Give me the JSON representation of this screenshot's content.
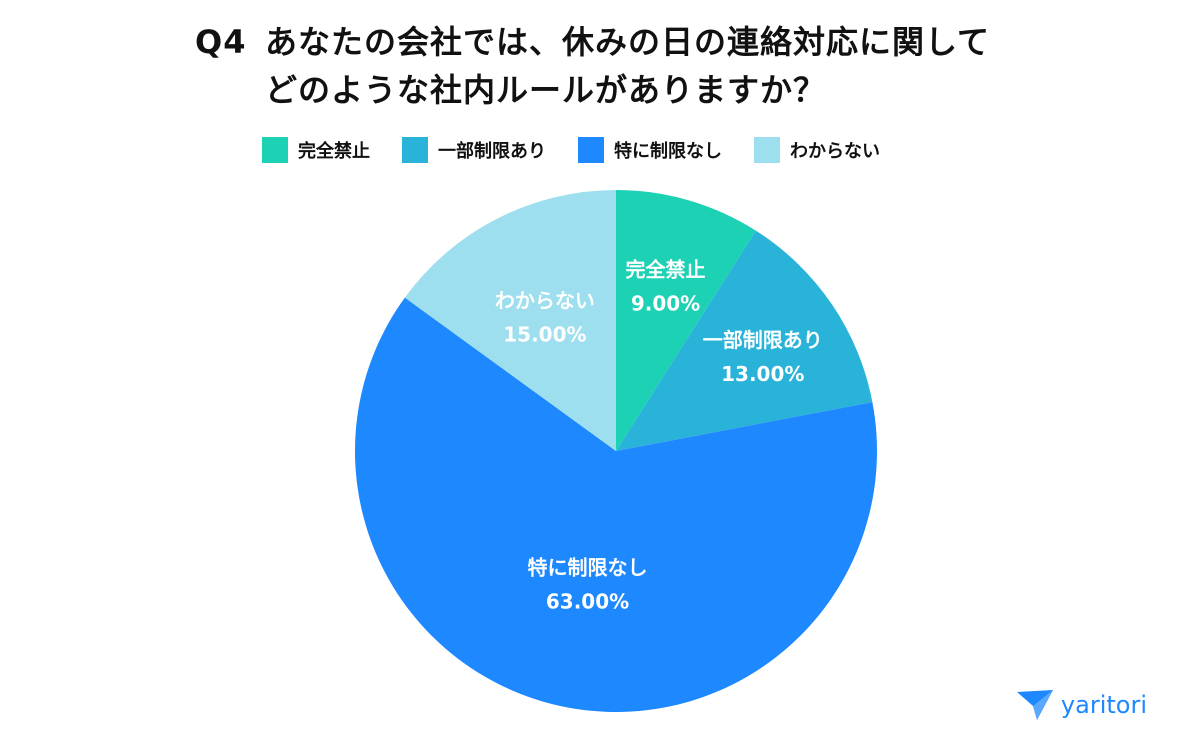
{
  "title": {
    "q_number": "Q4",
    "line1": "あなたの会社では、休みの日の連絡対応に関して",
    "line2": "どのような社内ルールがありますか？"
  },
  "chart_data": {
    "type": "pie",
    "categories": [
      "完全禁止",
      "一部制限あり",
      "特に制限なし",
      "わからない"
    ],
    "values": [
      9.0,
      13.0,
      63.0,
      15.0
    ],
    "value_labels": [
      "9.00%",
      "13.00%",
      "63.00%",
      "15.00%"
    ],
    "colors": [
      "#1dd1b4",
      "#29b3d9",
      "#1e88ff",
      "#9ddfee"
    ],
    "start": "12 o'clock, clockwise",
    "legend_position": "top"
  },
  "legend": [
    {
      "label": "完全禁止",
      "color": "#1dd1b4"
    },
    {
      "label": "一部制限あり",
      "color": "#29b3d9"
    },
    {
      "label": "特に制限なし",
      "color": "#1e88ff"
    },
    {
      "label": "わからない",
      "color": "#9ddfee"
    }
  ],
  "logo": {
    "text": "yaritori",
    "icon": "yaritori-logo-icon",
    "color": "#1e88ff"
  }
}
